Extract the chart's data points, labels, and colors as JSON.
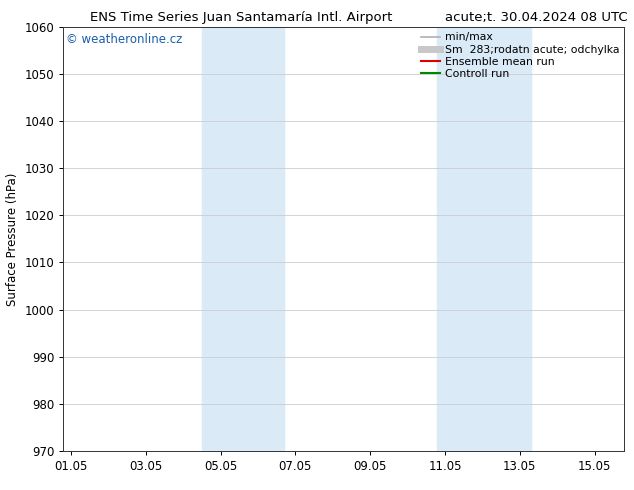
{
  "title_left": "ENS Time Series Juan Santamaría Intl. Airport",
  "title_right": "acute;t. 30.04.2024 08 UTC",
  "ylabel": "Surface Pressure (hPa)",
  "ylim": [
    970,
    1060
  ],
  "yticks": [
    970,
    980,
    990,
    1000,
    1010,
    1020,
    1030,
    1040,
    1050,
    1060
  ],
  "xtick_labels": [
    "01.05",
    "03.05",
    "05.05",
    "07.05",
    "09.05",
    "11.05",
    "13.05",
    "15.05"
  ],
  "xtick_positions": [
    0,
    2,
    4,
    6,
    8,
    10,
    12,
    14
  ],
  "xlim": [
    -0.2,
    14.8
  ],
  "shaded_bands": [
    {
      "x_start": 3.5,
      "x_end": 5.7
    },
    {
      "x_start": 9.8,
      "x_end": 12.3
    }
  ],
  "shade_color": "#daeaf7",
  "watermark": "© weatheronline.cz",
  "watermark_color": "#1a5faa",
  "legend_items": [
    {
      "label": "min/max",
      "color": "#b0b0b0",
      "lw": 1.2
    },
    {
      "label": "283;rodatn acute; odchylka",
      "color": "#c8c8c8",
      "lw": 5
    },
    {
      "label": "Ensemble mean run",
      "color": "#dd0000",
      "lw": 1.5
    },
    {
      "label": "Controll run",
      "color": "#008800",
      "lw": 1.5
    }
  ],
  "legend_prefix": "Sm  ",
  "bg_color": "#ffffff",
  "grid_color": "#cccccc",
  "title_fontsize": 9.5,
  "tick_fontsize": 8.5,
  "ylabel_fontsize": 8.5,
  "legend_fontsize": 7.8,
  "watermark_fontsize": 8.5
}
